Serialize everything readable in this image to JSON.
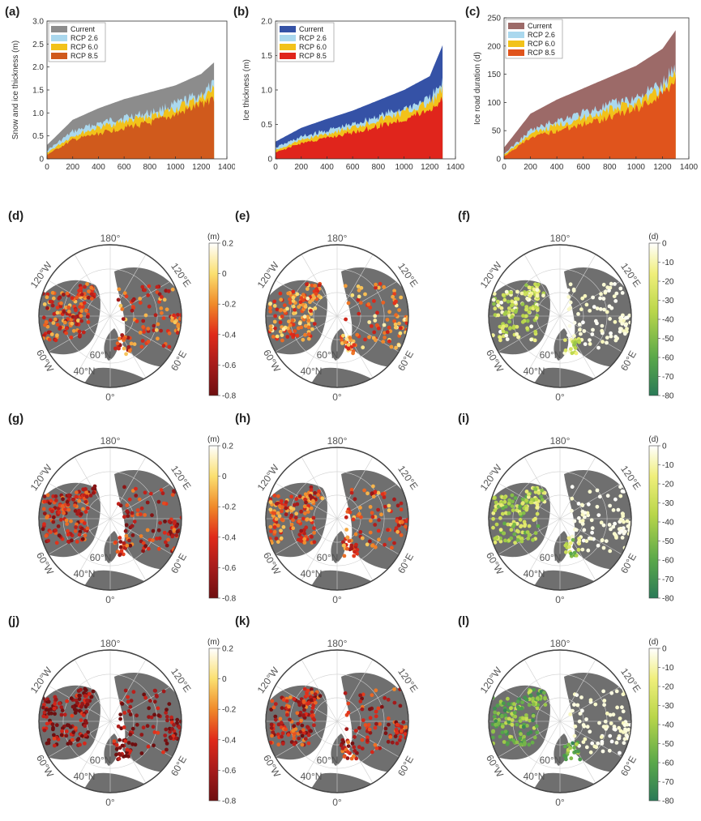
{
  "bar_panels": [
    {
      "label": "(a)",
      "ylabel": "Snow and ice thickness (m)",
      "ylim": [
        0,
        3
      ],
      "yticks": [
        "0",
        "0.5",
        "1.0",
        "1.5",
        "2.0",
        "2.5",
        "3.0"
      ],
      "legend": [
        "Current",
        "RCP 2.6",
        "RCP 6.0",
        "RCP 8.5"
      ],
      "colors": [
        "#8c8c8c",
        "#aad8ee",
        "#f2c21a",
        "#d05a1c"
      ]
    },
    {
      "label": "(b)",
      "ylabel": "Ice thickness (m)",
      "ylim": [
        0,
        2
      ],
      "yticks": [
        "0",
        "0.5",
        "1.0",
        "1.5",
        "2.0"
      ],
      "legend": [
        "Current",
        "RCP 2.6",
        "RCP 6.0",
        "RCP 8.5"
      ],
      "colors": [
        "#3552a6",
        "#aad8ee",
        "#f2c21a",
        "#e0251c"
      ]
    },
    {
      "label": "(c)",
      "ylabel": "Ice road duration (d)",
      "ylim": [
        0,
        250
      ],
      "yticks": [
        "0",
        "50",
        "100",
        "150",
        "200",
        "250"
      ],
      "legend": [
        "Current",
        "RCP 2.6",
        "RCP 6.0",
        "RCP 8.5"
      ],
      "colors": [
        "#9c6a68",
        "#aad8ee",
        "#f2c21a",
        "#e0541c"
      ]
    }
  ],
  "xticks": [
    "0",
    "200",
    "400",
    "600",
    "800",
    "1000",
    "1200",
    "1400"
  ],
  "chart_data": [
    {
      "type": "area",
      "panel": "a",
      "x": [
        0,
        200,
        400,
        600,
        800,
        1000,
        1200,
        1300
      ],
      "series": [
        {
          "name": "Current",
          "values": [
            0.3,
            0.85,
            1.1,
            1.3,
            1.45,
            1.6,
            1.85,
            2.1
          ]
        },
        {
          "name": "RCP 2.6",
          "values": [
            0.2,
            0.65,
            0.85,
            1.0,
            1.1,
            1.3,
            1.55,
            1.75
          ]
        },
        {
          "name": "RCP 6.0",
          "values": [
            0.15,
            0.55,
            0.75,
            0.9,
            1.0,
            1.2,
            1.45,
            1.65
          ]
        },
        {
          "name": "RCP 8.5",
          "values": [
            0.1,
            0.45,
            0.6,
            0.75,
            0.85,
            1.05,
            1.3,
            1.5
          ]
        }
      ],
      "xlim": [
        0,
        1400
      ],
      "ylim": [
        0,
        3
      ],
      "ylabel": "Snow and ice thickness (m)"
    },
    {
      "type": "area",
      "panel": "b",
      "x": [
        0,
        200,
        400,
        600,
        800,
        1000,
        1200,
        1300
      ],
      "series": [
        {
          "name": "Current",
          "values": [
            0.25,
            0.45,
            0.58,
            0.7,
            0.85,
            1.0,
            1.2,
            1.65
          ]
        },
        {
          "name": "RCP 2.6",
          "values": [
            0.18,
            0.35,
            0.45,
            0.55,
            0.68,
            0.8,
            0.95,
            1.2
          ]
        },
        {
          "name": "RCP 6.0",
          "values": [
            0.14,
            0.3,
            0.4,
            0.5,
            0.62,
            0.74,
            0.88,
            1.1
          ]
        },
        {
          "name": "RCP 8.5",
          "values": [
            0.1,
            0.25,
            0.33,
            0.42,
            0.52,
            0.63,
            0.78,
            0.95
          ]
        }
      ],
      "xlim": [
        0,
        1400
      ],
      "ylim": [
        0,
        2
      ],
      "ylabel": "Ice thickness (m)"
    },
    {
      "type": "area",
      "panel": "c",
      "x": [
        0,
        200,
        400,
        600,
        800,
        1000,
        1200,
        1300
      ],
      "series": [
        {
          "name": "Current",
          "values": [
            20,
            80,
            105,
            125,
            145,
            165,
            195,
            228
          ]
        },
        {
          "name": "RCP 2.6",
          "values": [
            10,
            55,
            75,
            90,
            105,
            120,
            145,
            180
          ]
        },
        {
          "name": "RCP 6.0",
          "values": [
            8,
            48,
            66,
            80,
            95,
            110,
            135,
            170
          ]
        },
        {
          "name": "RCP 8.5",
          "values": [
            5,
            40,
            55,
            68,
            82,
            98,
            125,
            160
          ]
        }
      ],
      "xlim": [
        0,
        1400
      ],
      "ylim": [
        0,
        250
      ],
      "ylabel": "Ice road duration (d)"
    }
  ],
  "maps": [
    {
      "label": "(d)",
      "palette": "thick",
      "intensity": 0.55
    },
    {
      "label": "(e)",
      "palette": "thick",
      "intensity": 0.4
    },
    {
      "label": "(f)",
      "palette": "dur",
      "intensity": 0.3
    },
    {
      "label": "(g)",
      "palette": "thick",
      "intensity": 0.7
    },
    {
      "label": "(h)",
      "palette": "thick",
      "intensity": 0.55
    },
    {
      "label": "(i)",
      "palette": "dur",
      "intensity": 0.45
    },
    {
      "label": "(j)",
      "palette": "thick",
      "intensity": 0.85
    },
    {
      "label": "(k)",
      "palette": "thick",
      "intensity": 0.7
    },
    {
      "label": "(l)",
      "palette": "dur",
      "intensity": 0.65
    }
  ],
  "map_labels": {
    "top": "180°",
    "bottom": "0°",
    "ul": "120°W",
    "ur": "120°E",
    "ll": "60°W",
    "lr": "60°E",
    "lat60": "60°N",
    "lat40": "40°N"
  },
  "colorbars": {
    "thick": {
      "unit": "(m)",
      "ticks": [
        "0.2",
        "0",
        "-0.2",
        "-0.4",
        "-0.6",
        "-0.8"
      ]
    },
    "dur": {
      "unit": "(d)",
      "ticks": [
        "0",
        "-10",
        "-20",
        "-30",
        "-40",
        "-50",
        "-60",
        "-70",
        "-80"
      ]
    }
  }
}
